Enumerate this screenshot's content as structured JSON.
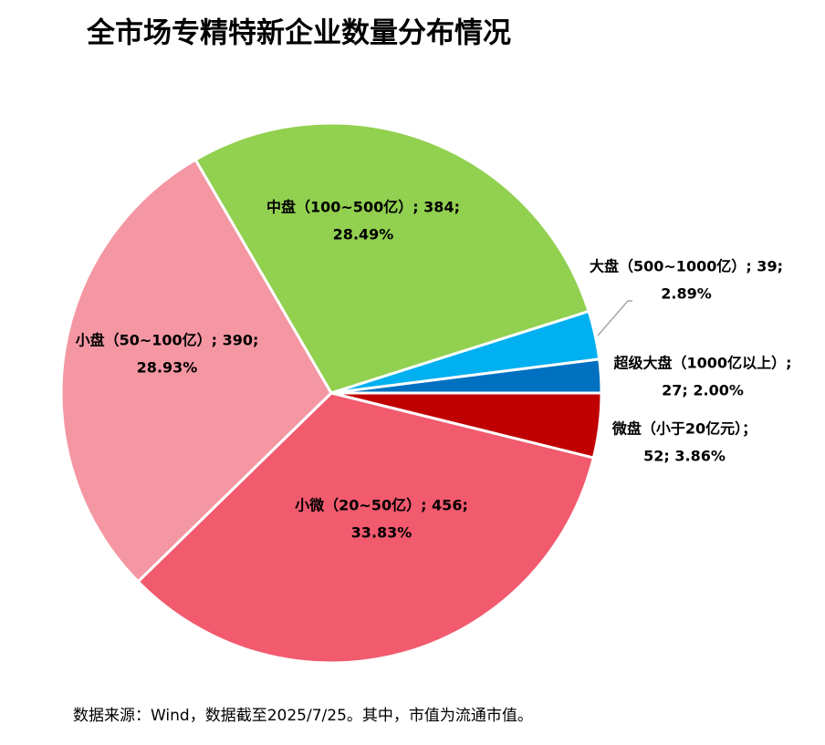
{
  "chart_data": {
    "type": "pie",
    "title": "全市场专精特新企业数量分布情况",
    "values": [
      52,
      456,
      390,
      384,
      39,
      27
    ],
    "value_labels": [
      [
        "微盘（小于20亿元）；",
        "52; 3.86%"
      ],
      [
        "小微（20~50亿）; 456;",
        "33.83%"
      ],
      [
        "小盘（50~100亿）; 390;",
        "28.93%"
      ],
      [
        "中盘（100~500亿）; 384;",
        "28.49%"
      ],
      [
        "大盘（500~1000亿）; 39;",
        "2.89%"
      ],
      [
        "超级大盘（1000亿以上）;",
        "27; 2.00%"
      ]
    ],
    "colors": [
      "#c00000",
      "#f25a6e",
      "#f497a3",
      "#92d050",
      "#00b0f0",
      "#0070c0"
    ],
    "note": "数据来源：Wind，数据截至2025/7/25。其中，市值为流通市值。"
  }
}
